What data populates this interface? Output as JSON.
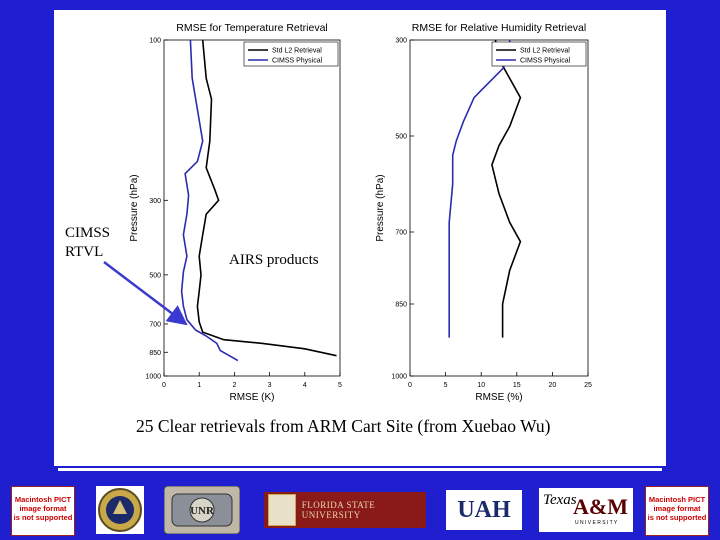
{
  "chart_data": [
    {
      "type": "line",
      "title": "RMSE for Temperature Retrieval",
      "xlabel": "RMSE (K)",
      "ylabel": "Pressure (hPa)",
      "xlim": [
        0,
        5
      ],
      "ylim": [
        100,
        1000
      ],
      "y_scale": "log",
      "x_ticks": [
        "0",
        "1",
        "2",
        "3",
        "4",
        "5"
      ],
      "y_ticks": [
        "100",
        "300",
        "500",
        "700",
        "850",
        "1000"
      ],
      "y_tick_values": [
        100,
        300,
        500,
        700,
        850,
        1000
      ],
      "legend_position": "top-right",
      "series": [
        {
          "name": "Std L2 Retrieval",
          "color": "#000000",
          "points": [
            [
              1.1,
              100
            ],
            [
              1.2,
              130
            ],
            [
              1.35,
              150
            ],
            [
              1.3,
              200
            ],
            [
              1.2,
              240
            ],
            [
              1.45,
              280
            ],
            [
              1.55,
              300
            ],
            [
              1.2,
              330
            ],
            [
              1.1,
              380
            ],
            [
              1.0,
              440
            ],
            [
              1.05,
              500
            ],
            [
              1.0,
              560
            ],
            [
              0.95,
              620
            ],
            [
              1.0,
              690
            ],
            [
              1.1,
              740
            ],
            [
              1.7,
              780
            ],
            [
              2.8,
              800
            ],
            [
              4.0,
              830
            ],
            [
              4.9,
              870
            ]
          ]
        },
        {
          "name": "CIMSS Physical",
          "color": "#2b2bb0",
          "points": [
            [
              0.75,
              100
            ],
            [
              0.8,
              130
            ],
            [
              0.9,
              150
            ],
            [
              1.1,
              200
            ],
            [
              0.95,
              230
            ],
            [
              0.6,
              250
            ],
            [
              0.7,
              290
            ],
            [
              0.65,
              330
            ],
            [
              0.55,
              380
            ],
            [
              0.65,
              440
            ],
            [
              0.55,
              490
            ],
            [
              0.5,
              560
            ],
            [
              0.55,
              620
            ],
            [
              0.65,
              680
            ],
            [
              0.9,
              730
            ],
            [
              1.2,
              760
            ],
            [
              1.5,
              800
            ],
            [
              1.6,
              840
            ],
            [
              2.1,
              900
            ]
          ]
        }
      ]
    },
    {
      "type": "line",
      "title": "RMSE for Relative Humidity Retrieval",
      "xlabel": "RMSE (%)",
      "ylabel": "Pressure (hPa)",
      "xlim": [
        0,
        25
      ],
      "ylim": [
        300,
        1000
      ],
      "x_ticks": [
        "0",
        "5",
        "10",
        "15",
        "20",
        "25"
      ],
      "y_ticks": [
        "300",
        "500",
        "700",
        "850",
        "1000"
      ],
      "y_tick_values": [
        300,
        500,
        700,
        850,
        1000
      ],
      "legend_position": "top-right",
      "series": [
        {
          "name": "Std L2 Retrieval",
          "color": "#000000",
          "points": [
            [
              12.0,
              300
            ],
            [
              12.5,
              340
            ],
            [
              14.0,
              380
            ],
            [
              15.5,
              420
            ],
            [
              14.0,
              480
            ],
            [
              12.5,
              520
            ],
            [
              11.5,
              560
            ],
            [
              12.5,
              620
            ],
            [
              14.0,
              680
            ],
            [
              15.5,
              720
            ],
            [
              14.0,
              780
            ],
            [
              13.0,
              850
            ],
            [
              13.0,
              920
            ]
          ]
        },
        {
          "name": "CIMSS Physical",
          "color": "#2b2bb0",
          "points": [
            [
              14.0,
              300
            ],
            [
              14.0,
              330
            ],
            [
              13.0,
              360
            ],
            [
              11.0,
              390
            ],
            [
              9.0,
              420
            ],
            [
              7.5,
              470
            ],
            [
              6.5,
              510
            ],
            [
              6.0,
              540
            ],
            [
              6.0,
              600
            ],
            [
              5.5,
              680
            ],
            [
              5.5,
              760
            ],
            [
              5.5,
              850
            ],
            [
              5.5,
              920
            ]
          ]
        }
      ]
    }
  ],
  "caption": "25 Clear retrievals from ARM Cart Site (from Xuebao Wu)",
  "callout_left": [
    "CIMSS",
    "RTVL"
  ],
  "callout_right": "AIRS products",
  "footer": {
    "pict_left": [
      "Macintosh PICT",
      "image format",
      "is not supported"
    ],
    "pict_right": [
      "Macintosh PICT",
      "image format",
      "is not supported"
    ],
    "logos": [
      "navy-seal-logo",
      "unr-logo"
    ],
    "fsu": "FLORIDA STATE UNIVERSITY",
    "uah": "UAH",
    "tamu_texas": "Texas",
    "tamu_am": "A&M",
    "tamu_sub": "U N I V E R S I T Y"
  },
  "colors": {
    "background": "#1f1fcf",
    "panel": "#ffffff",
    "cimss": "#2b2bb0",
    "std": "#000000",
    "arrow": "#3a3ad0"
  }
}
